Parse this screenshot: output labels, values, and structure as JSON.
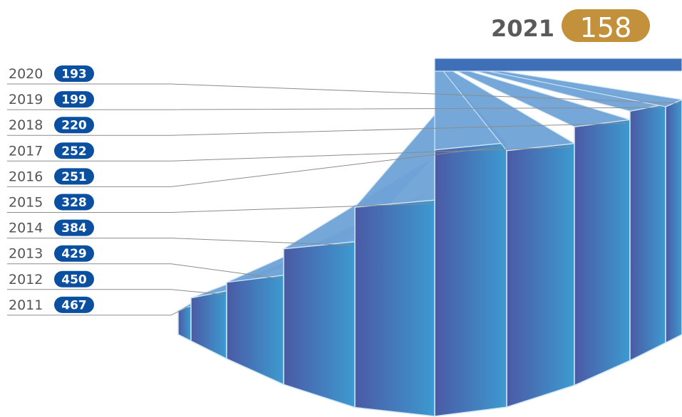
{
  "chart_data": {
    "type": "bar",
    "highlight": {
      "year": "2021",
      "value": 158
    },
    "categories": [
      "2011",
      "2012",
      "2013",
      "2014",
      "2015",
      "2016",
      "2017",
      "2018",
      "2019",
      "2020"
    ],
    "values": [
      467,
      450,
      429,
      384,
      328,
      251,
      252,
      220,
      199,
      193
    ],
    "colors": {
      "pill": "#0a4fa0",
      "highlight_pill": "#c3913b",
      "side_dark": "#4b5aa5",
      "side_light": "#3d9ad0",
      "top": "#6fa3d8",
      "top_dark": "#3f6fb6",
      "leader": "#8c8c8c"
    }
  }
}
